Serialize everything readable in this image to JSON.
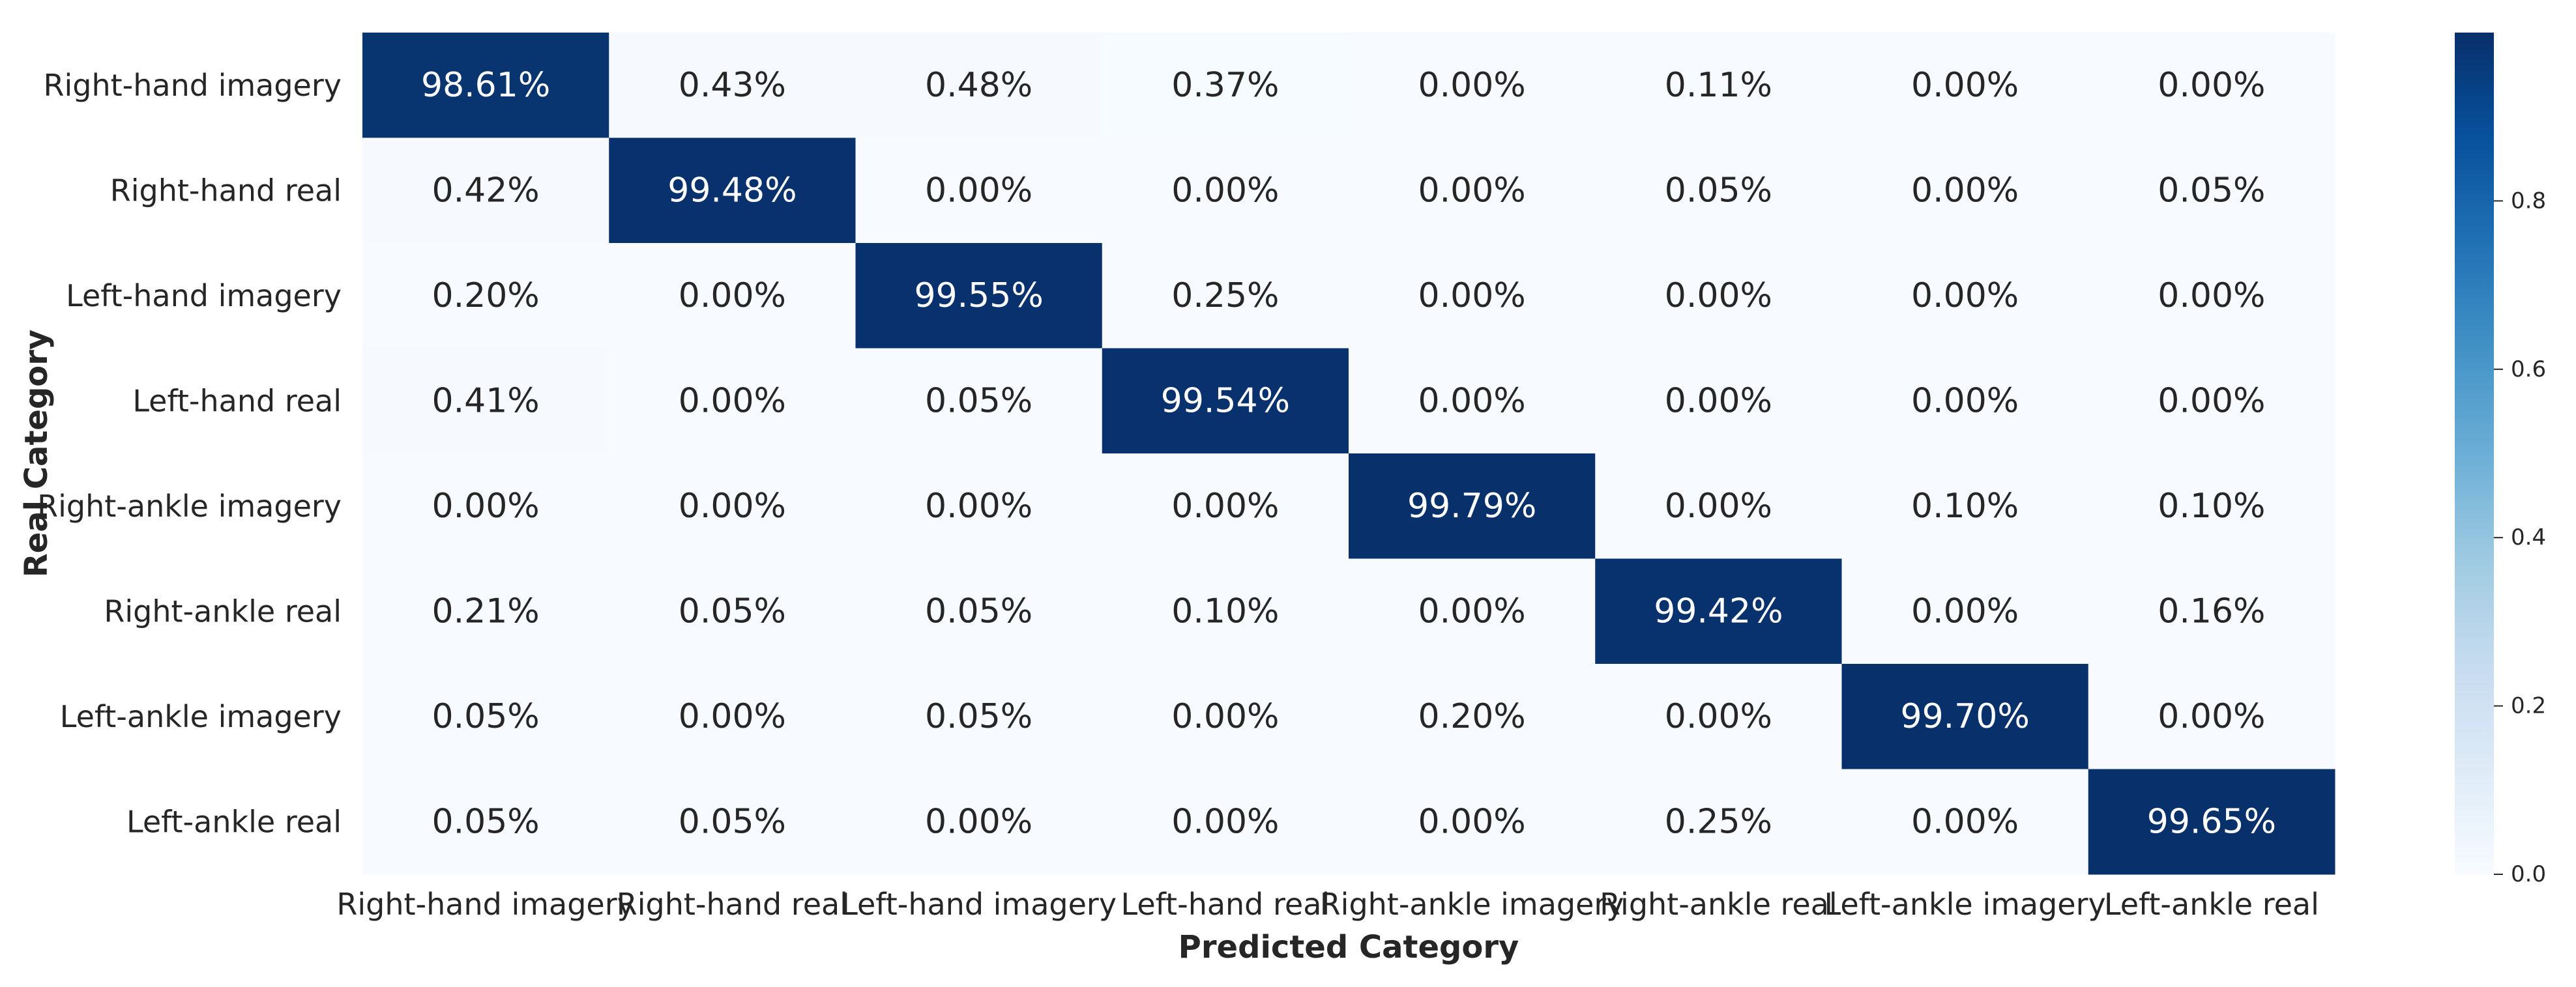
{
  "chart_data": {
    "type": "heatmap",
    "title": "",
    "xlabel": "Predicted Category",
    "ylabel": "Real Category",
    "row_labels": [
      "Right-hand imagery",
      "Right-hand real",
      "Left-hand imagery",
      "Left-hand real",
      "Right-ankle imagery",
      "Right-ankle real",
      "Left-ankle imagery",
      "Left-ankle real"
    ],
    "col_labels": [
      "Right-hand imagery",
      "Right-hand real",
      "Left-hand imagery",
      "Left-hand real",
      "Right-ankle imagery",
      "Right-ankle real",
      "Left-ankle imagery",
      "Left-ankle real"
    ],
    "values": [
      [
        0.9861,
        0.0043,
        0.0048,
        0.0037,
        0.0,
        0.0011,
        0.0,
        0.0
      ],
      [
        0.0042,
        0.9948,
        0.0,
        0.0,
        0.0,
        0.0005,
        0.0,
        0.0005
      ],
      [
        0.002,
        0.0,
        0.9955,
        0.0025,
        0.0,
        0.0,
        0.0,
        0.0
      ],
      [
        0.0041,
        0.0,
        0.0005,
        0.9954,
        0.0,
        0.0,
        0.0,
        0.0
      ],
      [
        0.0,
        0.0,
        0.0,
        0.0,
        0.9979,
        0.0,
        0.001,
        0.001
      ],
      [
        0.0021,
        0.0005,
        0.0005,
        0.001,
        0.0,
        0.9942,
        0.0,
        0.0016
      ],
      [
        0.0005,
        0.0,
        0.0005,
        0.0,
        0.002,
        0.0,
        0.997,
        0.0
      ],
      [
        0.0005,
        0.0005,
        0.0,
        0.0,
        0.0,
        0.0025,
        0.0,
        0.9965
      ]
    ],
    "cell_labels": [
      [
        "98.61%",
        "0.43%",
        "0.48%",
        "0.37%",
        "0.00%",
        "0.11%",
        "0.00%",
        "0.00%"
      ],
      [
        "0.42%",
        "99.48%",
        "0.00%",
        "0.00%",
        "0.00%",
        "0.05%",
        "0.00%",
        "0.05%"
      ],
      [
        "0.20%",
        "0.00%",
        "99.55%",
        "0.25%",
        "0.00%",
        "0.00%",
        "0.00%",
        "0.00%"
      ],
      [
        "0.41%",
        "0.00%",
        "0.05%",
        "99.54%",
        "0.00%",
        "0.00%",
        "0.00%",
        "0.00%"
      ],
      [
        "0.00%",
        "0.00%",
        "0.00%",
        "0.00%",
        "99.79%",
        "0.00%",
        "0.10%",
        "0.10%"
      ],
      [
        "0.21%",
        "0.05%",
        "0.05%",
        "0.10%",
        "0.00%",
        "99.42%",
        "0.00%",
        "0.16%"
      ],
      [
        "0.05%",
        "0.00%",
        "0.05%",
        "0.00%",
        "0.20%",
        "0.00%",
        "99.70%",
        "0.00%"
      ],
      [
        "0.05%",
        "0.05%",
        "0.00%",
        "0.00%",
        "0.00%",
        "0.25%",
        "0.00%",
        "99.65%"
      ]
    ],
    "colorbar": {
      "range": [
        0,
        1
      ],
      "ticks": [
        0.0,
        0.2,
        0.4,
        0.6,
        0.8
      ],
      "tick_labels": [
        "0.0",
        "0.2",
        "0.4",
        "0.6",
        "0.8"
      ],
      "colormap": "Blues"
    }
  }
}
